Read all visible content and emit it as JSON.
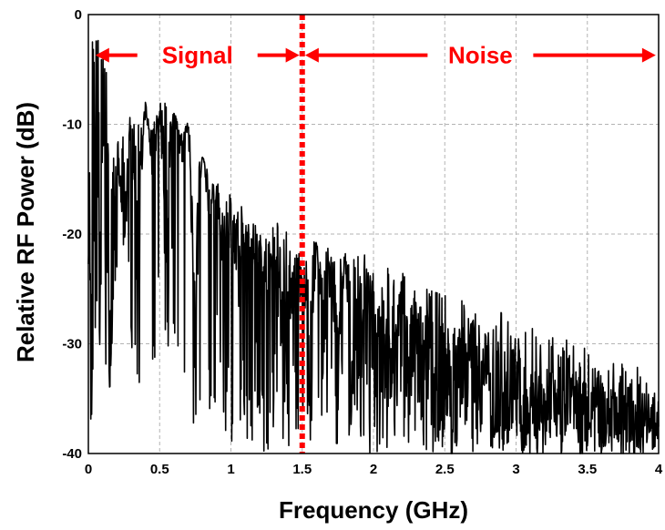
{
  "chart_data": {
    "type": "line",
    "title": "",
    "xlabel": "Frequency (GHz)",
    "ylabel": "Relative RF Power (dB)",
    "xlim": [
      0,
      4
    ],
    "ylim": [
      -40,
      0
    ],
    "xticks": [
      0,
      0.5,
      1,
      1.5,
      2,
      2.5,
      3,
      3.5,
      4
    ],
    "xtick_labels": [
      "0",
      "0.5",
      "1",
      "1.5",
      "2",
      "2.5",
      "3",
      "3.5",
      "4"
    ],
    "yticks": [
      0,
      -10,
      -20,
      -30,
      -40
    ],
    "ytick_labels": [
      "0",
      "-10",
      "-20",
      "-30",
      "-40"
    ],
    "grid": true,
    "legend": "none",
    "series_color": "#000000",
    "accent_color": "#ff0000",
    "cutoff": {
      "x": 1.5,
      "style": "dotted",
      "color": "#ff0000"
    },
    "regions": [
      {
        "label": "Signal",
        "x_start": 0.05,
        "x_end": 1.48,
        "y": -3.7
      },
      {
        "label": "Noise",
        "x_start": 1.52,
        "x_end": 3.98,
        "y": -3.7
      }
    ],
    "series": [
      {
        "x": [
          0.0,
          0.02,
          0.04,
          0.06,
          0.08,
          0.1,
          0.12,
          0.15,
          0.2,
          0.25,
          0.3,
          0.35,
          0.4,
          0.45,
          0.5,
          0.55,
          0.6,
          0.65,
          0.7,
          0.75,
          0.8,
          0.85,
          0.9,
          0.95,
          1.0,
          1.05,
          1.1,
          1.15,
          1.2,
          1.25,
          1.3,
          1.35,
          1.4,
          1.45,
          1.5,
          1.55,
          1.6,
          1.65,
          1.7,
          1.75,
          1.8,
          1.85,
          1.9,
          1.95,
          2.0,
          2.05,
          2.1,
          2.15,
          2.2,
          2.25,
          2.3,
          2.35,
          2.4,
          2.45,
          2.5,
          2.55,
          2.6,
          2.65,
          2.7,
          2.75,
          2.8,
          2.85,
          2.9,
          2.95,
          3.0,
          3.05,
          3.1,
          3.15,
          3.2,
          3.25,
          3.3,
          3.35,
          3.4,
          3.45,
          3.5,
          3.55,
          3.6,
          3.65,
          3.7,
          3.75,
          3.8,
          3.85,
          3.9,
          3.95,
          4.0
        ],
        "values": [
          -12,
          -36,
          -20,
          -1,
          -24,
          -12,
          -4,
          -28,
          -13,
          -18,
          -11,
          -20,
          -8,
          -13,
          -9,
          -17,
          -8,
          -13,
          -10,
          -25,
          -12,
          -18,
          -16,
          -22,
          -18,
          -24,
          -20,
          -21,
          -22,
          -24,
          -21,
          -26,
          -28,
          -23,
          -25,
          -30,
          -21,
          -27,
          -24,
          -29,
          -22,
          -31,
          -28,
          -25,
          -30,
          -27,
          -32,
          -29,
          -26,
          -33,
          -28,
          -34,
          -30,
          -36,
          -31,
          -35,
          -32,
          -33,
          -29,
          -34,
          -31,
          -35,
          -33,
          -36,
          -32,
          -37,
          -34,
          -36,
          -35,
          -33,
          -37,
          -35,
          -34,
          -38,
          -36,
          -34,
          -37,
          -35,
          -36,
          -38,
          -35,
          -37,
          -36,
          -38,
          -37
        ],
        "envelope_max": [
          0,
          0,
          -3,
          -1,
          -4,
          -3,
          -4,
          -9,
          -10,
          -11,
          -9,
          -10,
          -8,
          -9,
          -8,
          -8,
          -9,
          -10,
          -9,
          -14,
          -13,
          -14,
          -15,
          -17,
          -15,
          -17,
          -18,
          -19,
          -19,
          -20,
          -19,
          -19,
          -20,
          -21,
          -22,
          -21,
          -20,
          -21,
          -21,
          -22,
          -21,
          -22,
          -21,
          -22,
          -23,
          -23,
          -22,
          -24,
          -23,
          -24,
          -24,
          -23,
          -25,
          -24,
          -25,
          -26,
          -25,
          -26,
          -27,
          -27,
          -28,
          -28,
          -27,
          -28,
          -29,
          -29,
          -28,
          -29,
          -30,
          -29,
          -30,
          -29,
          -30,
          -31,
          -30,
          -31,
          -31,
          -32,
          -31,
          -32,
          -33,
          -32,
          -33,
          -34,
          -35
        ],
        "envelope_min": [
          -36,
          -37,
          -33,
          -31,
          -32,
          -35,
          -33,
          -34,
          -30,
          -31,
          -30,
          -34,
          -31,
          -33,
          -32,
          -31,
          -29,
          -35,
          -37,
          -38,
          -40,
          -40,
          -38,
          -40,
          -40,
          -40,
          -40,
          -40,
          -40,
          -40,
          -40,
          -40,
          -40,
          -40,
          -40,
          -40,
          -40,
          -40,
          -40,
          -40,
          -40,
          -40,
          -40,
          -40,
          -40,
          -40,
          -40,
          -40,
          -40,
          -40,
          -40,
          -40,
          -40,
          -40,
          -40,
          -40,
          -40,
          -40,
          -40,
          -40,
          -40,
          -40,
          -40,
          -40,
          -40,
          -40,
          -40,
          -40,
          -40,
          -40,
          -40,
          -40,
          -40,
          -40,
          -40,
          -40,
          -40,
          -40,
          -40,
          -40,
          -40,
          -40,
          -40,
          -40,
          -40
        ]
      }
    ]
  }
}
